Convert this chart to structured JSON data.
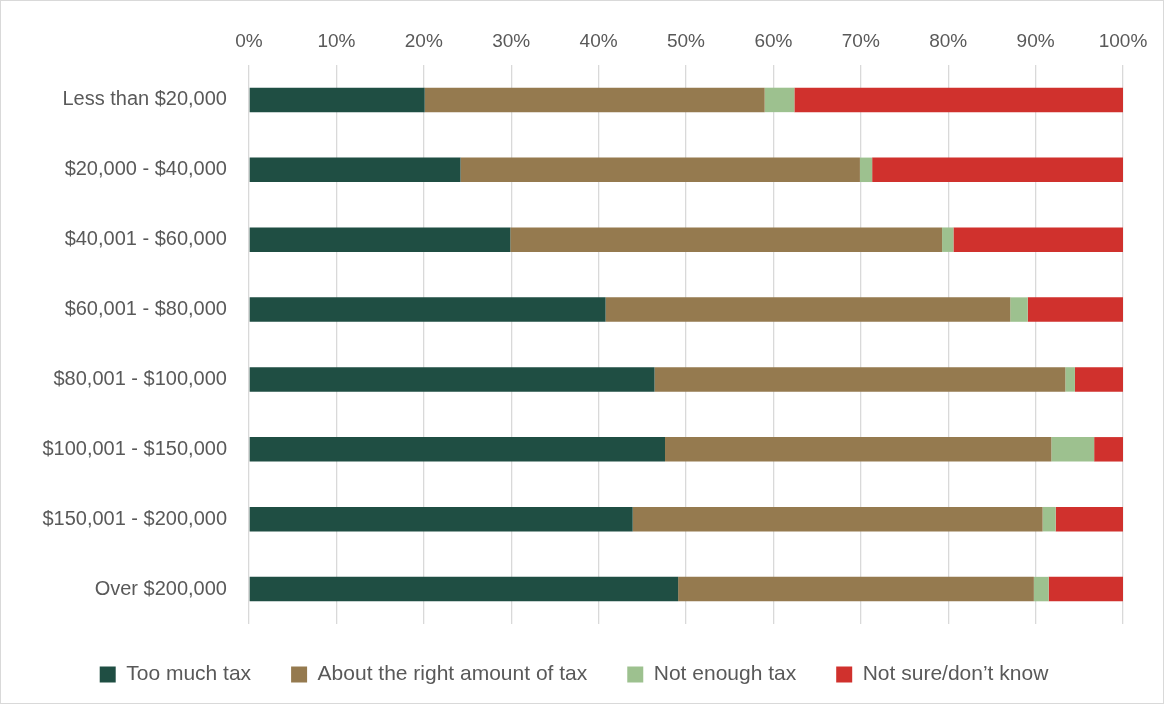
{
  "chart_data": {
    "type": "bar",
    "orientation": "horizontal",
    "stacked": true,
    "categories": [
      "Less than $20,000",
      "$20,000 - $40,000",
      "$40,001 - $60,000",
      "$60,001 - $80,000",
      "$80,001 - $100,000",
      "$100,001 - $150,000",
      "$150,001 - $200,000",
      "Over $200,000"
    ],
    "series": [
      {
        "name": "Too much tax",
        "color": "#1f4e43",
        "values": [
          20.1,
          24.2,
          29.9,
          40.8,
          46.4,
          47.6,
          43.9,
          49.1
        ]
      },
      {
        "name": "About the right amount of tax",
        "color": "#957a4f",
        "values": [
          38.9,
          45.7,
          49.4,
          46.3,
          47.0,
          44.2,
          46.9,
          40.7
        ]
      },
      {
        "name": "Not enough tax",
        "color": "#9dc18f",
        "values": [
          3.4,
          1.4,
          1.3,
          2.0,
          1.1,
          4.9,
          1.5,
          1.7
        ]
      },
      {
        "name": "Not sure/don’t know",
        "color": "#d0312d",
        "values": [
          37.6,
          28.7,
          19.4,
          10.9,
          5.5,
          3.3,
          7.7,
          8.5
        ]
      }
    ],
    "xlim": [
      0,
      100
    ],
    "xticks": [
      {
        "value": 0,
        "label": "0%"
      },
      {
        "value": 10,
        "label": "10%"
      },
      {
        "value": 20,
        "label": "20%"
      },
      {
        "value": 30,
        "label": "30%"
      },
      {
        "value": 40,
        "label": "40%"
      },
      {
        "value": 50,
        "label": "50%"
      },
      {
        "value": 60,
        "label": "60%"
      },
      {
        "value": 70,
        "label": "70%"
      },
      {
        "value": 80,
        "label": "80%"
      },
      {
        "value": 90,
        "label": "90%"
      },
      {
        "value": 100,
        "label": "100%"
      }
    ],
    "grid": "x",
    "legend": "bottom"
  }
}
